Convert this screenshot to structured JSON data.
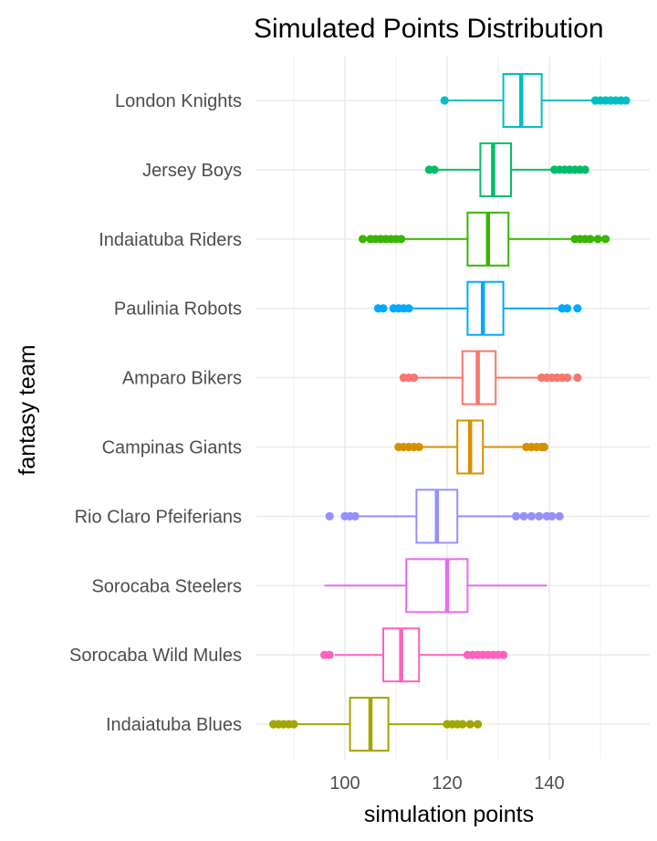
{
  "chart_data": {
    "type": "boxplot",
    "orientation": "horizontal",
    "title": "Simulated Points Distribution",
    "xlabel": "simulation points",
    "ylabel": "fantasy team",
    "xlim": [
      84,
      158
    ],
    "x_ticks": [
      100,
      120,
      140
    ],
    "grid": true,
    "legend": "none",
    "series": [
      {
        "name": "London Knights",
        "color": "#00BFC4",
        "whisker_low": 119.5,
        "q1": 131,
        "median": 134.5,
        "q3": 138.5,
        "whisker_high": 149,
        "outliers_low": [
          119.5
        ],
        "outliers_high": [
          149,
          150,
          151,
          152,
          153,
          154,
          155
        ]
      },
      {
        "name": "Jersey Boys",
        "color": "#00BE67",
        "whisker_low": 117.5,
        "q1": 126.5,
        "median": 129,
        "q3": 132.5,
        "whisker_high": 141,
        "outliers_low": [
          116.5,
          117.5
        ],
        "outliers_high": [
          141,
          142,
          143,
          144,
          145,
          146,
          147
        ]
      },
      {
        "name": "Indaiatuba Riders",
        "color": "#39B600",
        "whisker_low": 111.5,
        "q1": 124,
        "median": 128,
        "q3": 132,
        "whisker_high": 145,
        "outliers_low": [
          103.5,
          105,
          106,
          107,
          108,
          109,
          110,
          111
        ],
        "outliers_high": [
          145,
          146,
          147,
          148,
          149.5,
          151
        ]
      },
      {
        "name": "Paulinia Robots",
        "color": "#00A9FF",
        "whisker_low": 113,
        "q1": 124,
        "median": 127,
        "q3": 131,
        "whisker_high": 142,
        "outliers_low": [
          106.5,
          107.5,
          109.5,
          110.5,
          111.5,
          112.5
        ],
        "outliers_high": [
          142.5,
          143.5,
          145.5
        ]
      },
      {
        "name": "Amparo Bikers",
        "color": "#F8766D",
        "whisker_low": 113,
        "q1": 123,
        "median": 126,
        "q3": 129.5,
        "whisker_high": 138.5,
        "outliers_low": [
          111.5,
          112.5,
          113.5
        ],
        "outliers_high": [
          138.5,
          139.5,
          140.5,
          141.5,
          142.5,
          143.5,
          145.5
        ]
      },
      {
        "name": "Campinas Giants",
        "color": "#D89000",
        "whisker_low": 114,
        "q1": 122,
        "median": 124.5,
        "q3": 127,
        "whisker_high": 135.5,
        "outliers_low": [
          110.5,
          111.5,
          112.5,
          113.5,
          114.5
        ],
        "outliers_high": [
          135.5,
          136.5,
          137.5,
          138.5,
          139
        ]
      },
      {
        "name": "Rio Claro Pfeiferians",
        "color": "#9590FF",
        "whisker_low": 102.5,
        "q1": 114,
        "median": 118,
        "q3": 122,
        "whisker_high": 133.5,
        "outliers_low": [
          97,
          100,
          101,
          102
        ],
        "outliers_high": [
          133.5,
          135,
          136.5,
          138,
          139.5,
          140.5,
          142
        ]
      },
      {
        "name": "Sorocaba Steelers",
        "color": "#E76BF3",
        "whisker_low": 96,
        "q1": 112,
        "median": 120,
        "q3": 124,
        "whisker_high": 139.5,
        "outliers_low": [],
        "outliers_high": []
      },
      {
        "name": "Sorocaba Wild Mules",
        "color": "#FF62BC",
        "whisker_low": 98,
        "q1": 107.5,
        "median": 111,
        "q3": 114.5,
        "whisker_high": 124,
        "outliers_low": [
          96,
          97
        ],
        "outliers_high": [
          124,
          125,
          126,
          127,
          128,
          129,
          130,
          131
        ]
      },
      {
        "name": "Indaiatuba Blues",
        "color": "#A3A500",
        "whisker_low": 90,
        "q1": 101,
        "median": 105,
        "q3": 108.5,
        "whisker_high": 120,
        "outliers_low": [
          86,
          87,
          88,
          89,
          90
        ],
        "outliers_high": [
          120,
          121,
          122,
          123,
          124.5,
          126
        ]
      }
    ]
  }
}
